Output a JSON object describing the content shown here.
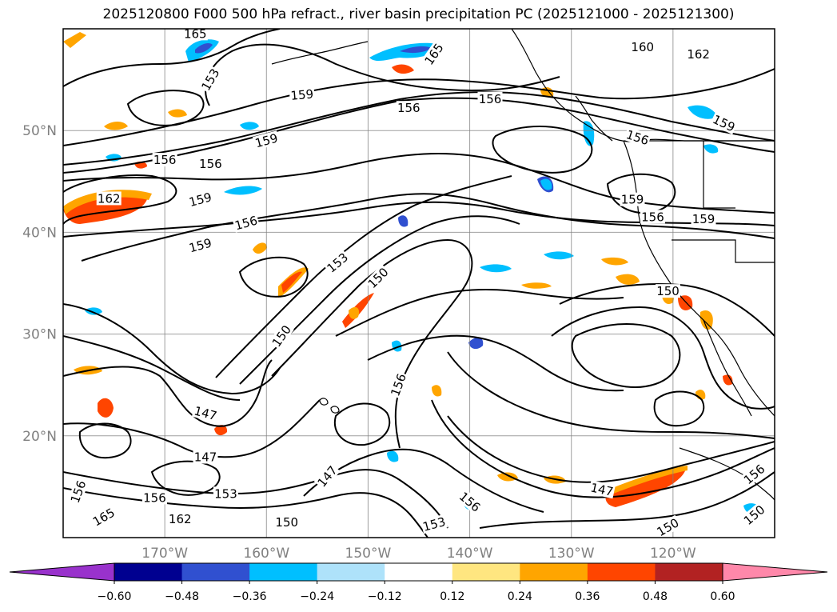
{
  "title": "2025120800 F000 500 hPa refract., river basin precipitation PC (2025121000 - 2025121300)",
  "map": {
    "lon_range": [
      -180,
      -110
    ],
    "lat_range": [
      10,
      60
    ],
    "lat_labels": [
      {
        "lat": 50,
        "text": "50°N"
      },
      {
        "lat": 40,
        "text": "40°N"
      },
      {
        "lat": 30,
        "text": "30°N"
      },
      {
        "lat": 20,
        "text": "20°N"
      }
    ],
    "lon_labels": [
      {
        "lon": -170,
        "text": "170°W"
      },
      {
        "lon": -160,
        "text": "160°W"
      },
      {
        "lon": -150,
        "text": "150°W"
      },
      {
        "lon": -140,
        "text": "140°W"
      },
      {
        "lon": -130,
        "text": "130°W"
      },
      {
        "lon": -120,
        "text": "120°W"
      }
    ],
    "contour_labels": [
      {
        "lon": -167,
        "lat": 59.5,
        "text": "165",
        "rot": 0
      },
      {
        "lon": -117.5,
        "lat": 57.5,
        "text": "162",
        "rot": 0
      },
      {
        "lon": -123,
        "lat": 58.2,
        "text": "160",
        "rot": 0
      },
      {
        "lon": -143.5,
        "lat": 57.5,
        "text": "165",
        "rot": -55
      },
      {
        "lon": -165.5,
        "lat": 55.0,
        "text": "153",
        "rot": -60
      },
      {
        "lon": -156.5,
        "lat": 53.5,
        "text": "159",
        "rot": -5
      },
      {
        "lon": -138,
        "lat": 53.1,
        "text": "156",
        "rot": 0
      },
      {
        "lon": -146,
        "lat": 52.2,
        "text": "156",
        "rot": 0
      },
      {
        "lon": -160,
        "lat": 49.0,
        "text": "159",
        "rot": -15
      },
      {
        "lon": -170,
        "lat": 47.1,
        "text": "156",
        "rot": 0
      },
      {
        "lon": -165.5,
        "lat": 46.7,
        "text": "156",
        "rot": 0
      },
      {
        "lon": -123.5,
        "lat": 49.3,
        "text": "156",
        "rot": 18
      },
      {
        "lon": -115,
        "lat": 50.7,
        "text": "159",
        "rot": 25
      },
      {
        "lon": -166.5,
        "lat": 43.2,
        "text": "159",
        "rot": -15
      },
      {
        "lon": -175.5,
        "lat": 43.3,
        "text": "162",
        "rot": 0
      },
      {
        "lon": -124,
        "lat": 43.2,
        "text": "159",
        "rot": 0
      },
      {
        "lon": -122,
        "lat": 41.5,
        "text": "156",
        "rot": 0
      },
      {
        "lon": -117,
        "lat": 41.3,
        "text": "159",
        "rot": 0
      },
      {
        "lon": -162,
        "lat": 40.9,
        "text": "156",
        "rot": -15
      },
      {
        "lon": -166.5,
        "lat": 38.7,
        "text": "159",
        "rot": -15
      },
      {
        "lon": -153,
        "lat": 37.0,
        "text": "153",
        "rot": -40
      },
      {
        "lon": -149,
        "lat": 35.5,
        "text": "150",
        "rot": -45
      },
      {
        "lon": -120.5,
        "lat": 34.2,
        "text": "150",
        "rot": 0
      },
      {
        "lon": -158.5,
        "lat": 29.8,
        "text": "150",
        "rot": -55
      },
      {
        "lon": -147,
        "lat": 25.0,
        "text": "156",
        "rot": -70
      },
      {
        "lon": -166,
        "lat": 22.2,
        "text": "147",
        "rot": 15
      },
      {
        "lon": -166,
        "lat": 17.9,
        "text": "147",
        "rot": 0
      },
      {
        "lon": -127,
        "lat": 14.7,
        "text": "147",
        "rot": 12
      },
      {
        "lon": -154,
        "lat": 16.0,
        "text": "147",
        "rot": -50
      },
      {
        "lon": -178.5,
        "lat": 14.5,
        "text": "156",
        "rot": -70
      },
      {
        "lon": -171,
        "lat": 13.9,
        "text": "156",
        "rot": 0
      },
      {
        "lon": -164,
        "lat": 14.3,
        "text": "153",
        "rot": 0
      },
      {
        "lon": -140,
        "lat": 13.5,
        "text": "156",
        "rot": 40
      },
      {
        "lon": -176,
        "lat": 12.0,
        "text": "165",
        "rot": -30
      },
      {
        "lon": -168.5,
        "lat": 11.8,
        "text": "162",
        "rot": 0
      },
      {
        "lon": -158,
        "lat": 11.5,
        "text": "150",
        "rot": 0
      },
      {
        "lon": -143.5,
        "lat": 11.3,
        "text": "153",
        "rot": -15
      },
      {
        "lon": -112,
        "lat": 16.2,
        "text": "156",
        "rot": -40
      },
      {
        "lon": -112,
        "lat": 12.2,
        "text": "150",
        "rot": -40
      },
      {
        "lon": -120.5,
        "lat": 11.0,
        "text": "150",
        "rot": -30
      }
    ]
  },
  "colorbar": {
    "ticks": [
      "−0.60",
      "−0.48",
      "−0.36",
      "−0.24",
      "−0.12",
      "0.12",
      "0.24",
      "0.36",
      "0.48",
      "0.60"
    ],
    "under_color": "#9932cc",
    "over_color": "#ff88aa",
    "colors": [
      "#000090",
      "#3050d0",
      "#00bfff",
      "#aee2fa",
      "#ffffff",
      "#ffe680",
      "#ffa500",
      "#ff4500",
      "#b22222"
    ]
  },
  "colors": {
    "neg_strong": "#3050d0",
    "neg_mid": "#00bfff",
    "pos_mid": "#ffa500",
    "pos_strong": "#ff4500"
  }
}
